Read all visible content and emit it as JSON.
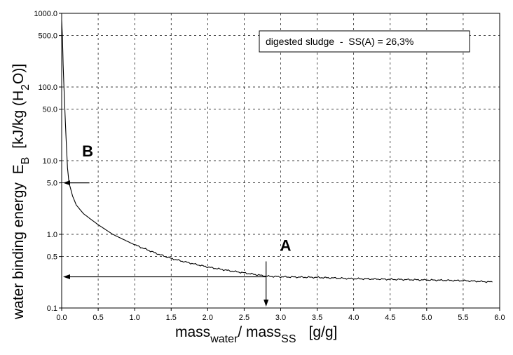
{
  "chart_data": {
    "type": "line",
    "title": "",
    "legend": {
      "text": "digested sludge  -  SS(A) = 26,3%",
      "placement": "top-right"
    },
    "xlabel": {
      "main": "mass",
      "sub1": "water",
      "slash": "/ mass",
      "sub2": "SS",
      "unit": "[g/g]"
    },
    "ylabel": {
      "pre": "water binding energy  E",
      "sub": "B",
      "unit1": "[kJ/kg (H",
      "unit_sub": "2",
      "unit2": "O)]"
    },
    "x_ticks": [
      "0.0",
      "0.5",
      "1.0",
      "1.5",
      "2.0",
      "2.5",
      "3.0",
      "3.5",
      "4.0",
      "4.5",
      "5.0",
      "5.5",
      "6.0"
    ],
    "x_tick_values": [
      0,
      0.5,
      1,
      1.5,
      2,
      2.5,
      3,
      3.5,
      4,
      4.5,
      5,
      5.5,
      6
    ],
    "y_scale": "log",
    "y_ticks": [
      {
        "value": 1000,
        "label": "1000.0"
      },
      {
        "value": 500,
        "label": "500.0"
      },
      {
        "value": 100,
        "label": "100.0"
      },
      {
        "value": 50,
        "label": "50.0"
      },
      {
        "value": 10,
        "label": "10.0"
      },
      {
        "value": 5,
        "label": "5.0"
      },
      {
        "value": 1,
        "label": "1.0"
      },
      {
        "value": 0.5,
        "label": "0.5"
      },
      {
        "value": 0.1,
        "label": "0.1"
      }
    ],
    "xlim": [
      0,
      6
    ],
    "ylim": [
      0.1,
      1000
    ],
    "grid": true,
    "series": [
      {
        "x": [
          0.0,
          0.01,
          0.02,
          0.04,
          0.06,
          0.08,
          0.1,
          0.15,
          0.2,
          0.3,
          0.4,
          0.5,
          0.7,
          1.0,
          1.3,
          1.5,
          1.7,
          2.0,
          2.3,
          2.5,
          2.7,
          2.8,
          3.0,
          3.5,
          4.0,
          4.5,
          5.0,
          5.5,
          5.9
        ],
        "y": [
          800,
          500,
          200,
          60,
          20,
          8,
          5,
          3.3,
          2.5,
          1.9,
          1.6,
          1.35,
          1.0,
          0.72,
          0.55,
          0.47,
          0.42,
          0.36,
          0.32,
          0.3,
          0.28,
          0.27,
          0.265,
          0.26,
          0.25,
          0.245,
          0.24,
          0.235,
          0.225
        ]
      }
    ],
    "annotations": [
      {
        "label": "A",
        "x": 2.8,
        "y": 0.265
      },
      {
        "label": "B",
        "x": 0.08,
        "y": 5
      }
    ]
  }
}
